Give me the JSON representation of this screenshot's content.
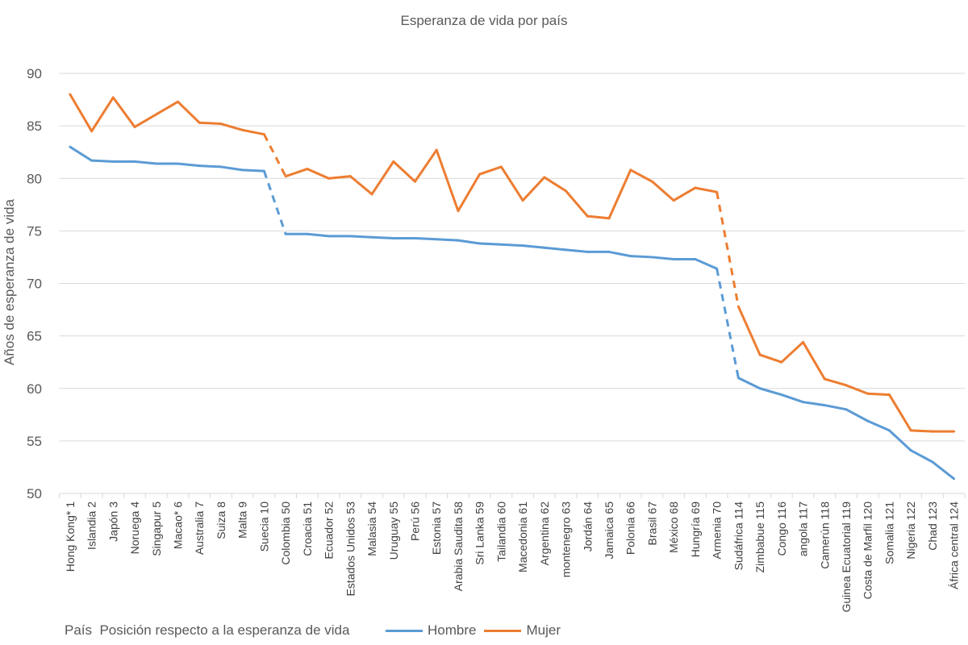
{
  "chart_data": {
    "type": "line",
    "title": "Esperanza de vida por país",
    "ylabel": "Años de esperanza de vida",
    "xlabel": "País  Posición respecto a la esperanza de vida",
    "ylim": [
      50,
      90
    ],
    "yticks": [
      50,
      55,
      60,
      65,
      70,
      75,
      80,
      85,
      90
    ],
    "grid": true,
    "legend": "bottom",
    "categories": [
      {
        "name": "Hong Kong*",
        "rank": 1
      },
      {
        "name": "Islandia",
        "rank": 2
      },
      {
        "name": "Japón",
        "rank": 3
      },
      {
        "name": "Noruega",
        "rank": 4
      },
      {
        "name": "Singapur",
        "rank": 5
      },
      {
        "name": "Macao*",
        "rank": 6
      },
      {
        "name": "Australia",
        "rank": 7
      },
      {
        "name": "Suiza",
        "rank": 8
      },
      {
        "name": "Malta",
        "rank": 9
      },
      {
        "name": "Suecia",
        "rank": 10
      },
      {
        "name": "Colombia",
        "rank": 50
      },
      {
        "name": "Croacia",
        "rank": 51
      },
      {
        "name": "Ecuador",
        "rank": 52
      },
      {
        "name": "Estados Unidos",
        "rank": 53
      },
      {
        "name": "Malasia",
        "rank": 54
      },
      {
        "name": "Uruguay",
        "rank": 55
      },
      {
        "name": "Perú",
        "rank": 56
      },
      {
        "name": "Estonia",
        "rank": 57
      },
      {
        "name": "Arabia Saudita",
        "rank": 58
      },
      {
        "name": "Sri Lanka",
        "rank": 59
      },
      {
        "name": "Tailandia",
        "rank": 60
      },
      {
        "name": "Macedonia",
        "rank": 61
      },
      {
        "name": "Argentina",
        "rank": 62
      },
      {
        "name": "montenegro",
        "rank": 63
      },
      {
        "name": "Jordán",
        "rank": 64
      },
      {
        "name": "Jamaica",
        "rank": 65
      },
      {
        "name": "Polonia",
        "rank": 66
      },
      {
        "name": "Brasil",
        "rank": 67
      },
      {
        "name": "México",
        "rank": 68
      },
      {
        "name": "Hungría",
        "rank": 69
      },
      {
        "name": "Armenia",
        "rank": 70
      },
      {
        "name": "Sudáfrica",
        "rank": 114
      },
      {
        "name": "Zimbabue",
        "rank": 115
      },
      {
        "name": "Congo",
        "rank": 116
      },
      {
        "name": "angola",
        "rank": 117
      },
      {
        "name": "Camerún",
        "rank": 118
      },
      {
        "name": "Guinea Ecuatorial",
        "rank": 119
      },
      {
        "name": "Costa de Marfil",
        "rank": 120
      },
      {
        "name": "Somalia",
        "rank": 121
      },
      {
        "name": "Nigeria",
        "rank": 122
      },
      {
        "name": "Chad",
        "rank": 123
      },
      {
        "name": "África central",
        "rank": 124
      }
    ],
    "series": [
      {
        "name": "Hombre",
        "color": "#5B9BD5",
        "values": [
          83.0,
          81.7,
          81.6,
          81.6,
          81.4,
          81.4,
          81.2,
          81.1,
          80.8,
          80.7,
          74.7,
          74.7,
          74.5,
          74.5,
          74.4,
          74.3,
          74.3,
          74.2,
          74.1,
          73.8,
          73.7,
          73.6,
          73.4,
          73.2,
          73.0,
          73.0,
          72.6,
          72.5,
          72.3,
          72.3,
          71.4,
          61.0,
          60.0,
          59.4,
          58.7,
          58.4,
          58.0,
          56.9,
          56.0,
          54.1,
          53.0,
          51.4
        ]
      },
      {
        "name": "Mujer",
        "color": "#ED7D31",
        "values": [
          88.0,
          84.5,
          87.7,
          84.9,
          86.1,
          87.3,
          85.3,
          85.2,
          84.6,
          84.2,
          80.2,
          80.9,
          80.0,
          80.2,
          78.5,
          81.6,
          79.7,
          82.7,
          76.9,
          80.4,
          81.1,
          77.9,
          80.1,
          78.8,
          76.4,
          76.2,
          80.8,
          79.7,
          77.9,
          79.1,
          78.7,
          67.8,
          63.2,
          62.5,
          64.4,
          60.9,
          60.3,
          59.5,
          59.4,
          56.0,
          55.9,
          55.9
        ]
      }
    ]
  }
}
